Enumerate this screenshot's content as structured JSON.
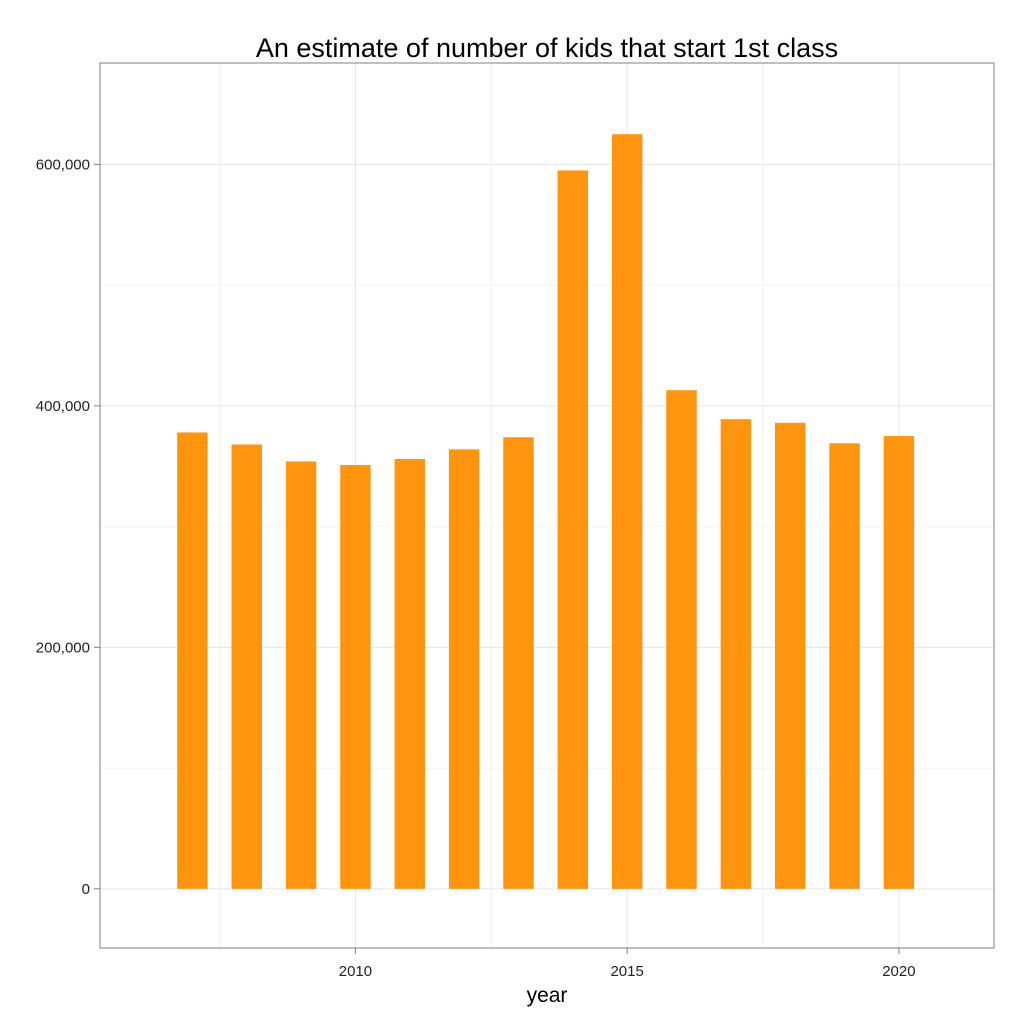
{
  "chart_data": {
    "type": "bar",
    "title": "An estimate of number of kids that start 1st class",
    "xlabel": "year",
    "ylabel": "",
    "x": [
      2007,
      2008,
      2009,
      2010,
      2011,
      2012,
      2013,
      2014,
      2015,
      2016,
      2017,
      2018,
      2019,
      2020
    ],
    "values": [
      378000,
      368000,
      354000,
      351000,
      356000,
      364000,
      374000,
      595000,
      625000,
      413000,
      389000,
      386000,
      369000,
      375000
    ],
    "xlim": [
      2005.3,
      2021.75
    ],
    "ylim": [
      -49000,
      684000
    ],
    "xticks": [
      2010,
      2015,
      2020
    ],
    "xtick_labels": [
      "2010",
      "2015",
      "2020"
    ],
    "yticks": [
      0,
      200000,
      400000,
      600000
    ],
    "ytick_labels": [
      "0",
      "200,000",
      "400,000",
      "600,000"
    ],
    "grid": true,
    "bar_color": "#FF950E"
  }
}
